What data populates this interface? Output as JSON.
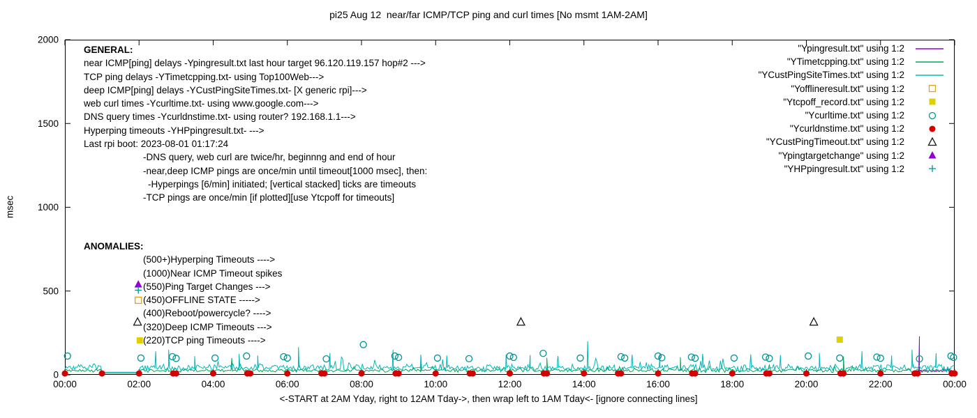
{
  "chart_data": {
    "type": "line",
    "title": "pi25 Aug 12  near/far ICMP/TCP ping and curl times [No msmt 1AM-2AM]",
    "xlabel": "<-START at 2AM Yday, right to 12AM Tday->, then wrap left to 1AM Tday<- [ignore connecting lines]",
    "ylabel": "msec",
    "xlim": [
      0,
      24
    ],
    "ylim": [
      0,
      2000
    ],
    "grid": false,
    "legend_position": "top-right-inside",
    "xticks": [
      {
        "v": 0,
        "label": "00:00"
      },
      {
        "v": 2,
        "label": "02:00"
      },
      {
        "v": 4,
        "label": "04:00"
      },
      {
        "v": 6,
        "label": "06:00"
      },
      {
        "v": 8,
        "label": "08:00"
      },
      {
        "v": 10,
        "label": "10:00"
      },
      {
        "v": 12,
        "label": "12:00"
      },
      {
        "v": 14,
        "label": "14:00"
      },
      {
        "v": 16,
        "label": "16:00"
      },
      {
        "v": 18,
        "label": "18:00"
      },
      {
        "v": 20,
        "label": "20:00"
      },
      {
        "v": 22,
        "label": "22:00"
      },
      {
        "v": 24,
        "label": "00:00"
      }
    ],
    "yticks": [
      {
        "v": 0,
        "label": "0"
      },
      {
        "v": 500,
        "label": "500"
      },
      {
        "v": 1000,
        "label": "1000"
      },
      {
        "v": 1500,
        "label": "1500"
      },
      {
        "v": 2000,
        "label": "2000"
      }
    ],
    "legend": [
      {
        "label": "\"Ypingresult.txt\" using 1:2",
        "sample": "line",
        "color": "#9400d3"
      },
      {
        "label": "\"YTimetcpping.txt\" using 1:2",
        "sample": "line",
        "color": "#00a550"
      },
      {
        "label": "\"YCustPingSiteTimes.txt\" using 1:2",
        "sample": "line",
        "color": "#00b8b8"
      },
      {
        "label": "\"Yofflineresult.txt\" using 1:2",
        "sample": "open-square",
        "color": "#e0a020"
      },
      {
        "label": "\"Ytcpoff_record.txt\" using 1:2",
        "sample": "filled-square",
        "color": "#e0d000"
      },
      {
        "label": "\"Ycurltime.txt\" using 1:2",
        "sample": "open-circle",
        "color": "#009494"
      },
      {
        "label": "\"Ycurldnstime.txt\" using 1:2",
        "sample": "filled-circle",
        "color": "#d40000"
      },
      {
        "label": "\"YCustPingTimeout.txt\" using 1:2",
        "sample": "open-triangle",
        "color": "#111111"
      },
      {
        "label": "\"Ypingtargetchange\" using 1:2",
        "sample": "filled-triangle",
        "color": "#9400d3"
      },
      {
        "label": "\"YHPpingresult.txt\" using 1:2",
        "sample": "plus",
        "color": "#009494"
      }
    ],
    "series": [
      {
        "name": "Ypingresult.txt",
        "style": "line",
        "color": "#9400d3",
        "synthetic_noise": {
          "start": 23.0,
          "end": 24.0,
          "step": 0.0167,
          "mean": 24,
          "amplitude": 9,
          "seed": 5
        },
        "spikes": [
          [
            23.05,
            230
          ]
        ]
      },
      {
        "name": "YTimetcpping.txt",
        "style": "line",
        "color": "#00a550",
        "synthetic_noise": {
          "start": 0,
          "end": 24,
          "step": 0.04,
          "mean": 26,
          "amplitude": 13,
          "seed": 13,
          "gap": [
            1.02,
            1.98
          ],
          "gap_level": 10
        },
        "spikes": [
          [
            4.5,
            100
          ],
          [
            9.6,
            108
          ],
          [
            13.0,
            102
          ],
          [
            16.6,
            105
          ],
          [
            21.0,
            110
          ]
        ]
      },
      {
        "name": "YCustPingSiteTimes.txt",
        "style": "line",
        "color": "#00b8b8",
        "synthetic_noise": {
          "start": 0,
          "end": 24,
          "step": 0.0333,
          "mean": 42,
          "amplitude": 26,
          "seed": 7,
          "gap": [
            1.02,
            1.98
          ],
          "gap_level": 16
        },
        "spikes": [
          [
            2.45,
            140
          ],
          [
            2.8,
            150
          ],
          [
            3.5,
            112
          ],
          [
            4.7,
            125
          ],
          [
            5.2,
            115
          ],
          [
            6.3,
            165
          ],
          [
            7.15,
            130
          ],
          [
            8.85,
            150
          ],
          [
            9.6,
            120
          ],
          [
            10.3,
            115
          ],
          [
            11.9,
            120
          ],
          [
            12.55,
            118
          ],
          [
            13.3,
            112
          ],
          [
            14.1,
            200
          ],
          [
            15.3,
            120
          ],
          [
            16.05,
            130
          ],
          [
            17.2,
            125
          ],
          [
            18.5,
            122
          ],
          [
            19.3,
            118
          ],
          [
            20.35,
            130
          ],
          [
            21.5,
            140
          ],
          [
            22.3,
            115
          ],
          [
            22.85,
            150
          ],
          [
            23.5,
            128
          ]
        ]
      },
      {
        "name": "Yofflineresult.txt",
        "style": "open-square",
        "color": "#e0a020",
        "points": [
          [
            1.98,
            445
          ]
        ]
      },
      {
        "name": "Ytcpoff_record.txt",
        "style": "filled-square",
        "color": "#e0d000",
        "points": [
          [
            2.02,
            205
          ],
          [
            20.9,
            210
          ]
        ]
      },
      {
        "name": "Ycurltime.txt",
        "style": "open-circle",
        "color": "#009494",
        "points": [
          [
            0.07,
            112
          ],
          [
            2.05,
            100
          ],
          [
            2.9,
            108
          ],
          [
            3.0,
            98
          ],
          [
            4.05,
            100
          ],
          [
            4.9,
            112
          ],
          [
            5.9,
            108
          ],
          [
            6.0,
            100
          ],
          [
            7.05,
            95
          ],
          [
            8.05,
            180
          ],
          [
            8.9,
            112
          ],
          [
            9.0,
            104
          ],
          [
            10.05,
            100
          ],
          [
            10.9,
            96
          ],
          [
            12.0,
            112
          ],
          [
            12.1,
            104
          ],
          [
            12.9,
            128
          ],
          [
            13.9,
            100
          ],
          [
            15.0,
            108
          ],
          [
            15.1,
            100
          ],
          [
            16.0,
            112
          ],
          [
            16.1,
            102
          ],
          [
            16.9,
            106
          ],
          [
            17.0,
            99
          ],
          [
            18.05,
            100
          ],
          [
            18.9,
            106
          ],
          [
            19.0,
            98
          ],
          [
            20.05,
            112
          ],
          [
            20.9,
            100
          ],
          [
            21.9,
            106
          ],
          [
            22.0,
            99
          ],
          [
            23.05,
            95
          ],
          [
            23.9,
            112
          ],
          [
            23.97,
            104
          ]
        ]
      },
      {
        "name": "Ycurldnstime.txt",
        "style": "filled-circle",
        "color": "#d40000",
        "points": [
          [
            0,
            8
          ],
          [
            1,
            8
          ],
          [
            2,
            8
          ],
          [
            2.92,
            8
          ],
          [
            3,
            8
          ],
          [
            4,
            8
          ],
          [
            4.92,
            8
          ],
          [
            5,
            8
          ],
          [
            6,
            8
          ],
          [
            6.92,
            8
          ],
          [
            7,
            8
          ],
          [
            8,
            8
          ],
          [
            8.92,
            8
          ],
          [
            9,
            8
          ],
          [
            10,
            8
          ],
          [
            10.92,
            8
          ],
          [
            11,
            8
          ],
          [
            12,
            8
          ],
          [
            12.92,
            8
          ],
          [
            13,
            8
          ],
          [
            14,
            8
          ],
          [
            14.92,
            8
          ],
          [
            15,
            8
          ],
          [
            16,
            8
          ],
          [
            16.92,
            8
          ],
          [
            17,
            8
          ],
          [
            18,
            8
          ],
          [
            18.92,
            8
          ],
          [
            19,
            8
          ],
          [
            20,
            8
          ],
          [
            20.92,
            8
          ],
          [
            21,
            8
          ],
          [
            22,
            8
          ],
          [
            22.92,
            8
          ],
          [
            23,
            8
          ],
          [
            23.92,
            8
          ],
          [
            24,
            8
          ]
        ]
      },
      {
        "name": "YCustPingTimeout.txt",
        "style": "open-triangle",
        "color": "#111111",
        "points": [
          [
            1.96,
            315
          ],
          [
            12.3,
            315
          ],
          [
            20.2,
            315
          ]
        ]
      },
      {
        "name": "Ypingtargetchange",
        "style": "filled-triangle",
        "color": "#9400d3",
        "points": [
          [
            1.98,
            540
          ]
        ]
      },
      {
        "name": "YHPpingresult.txt",
        "style": "plus",
        "color": "#009494",
        "points": [
          [
            1.98,
            505
          ]
        ]
      }
    ]
  },
  "annotations": {
    "general": {
      "heading": "GENERAL:",
      "lines": [
        {
          "text": "near ICMP[ping] delays -Ypingresult.txt last hour target 96.120.119.157 hop#2 --->",
          "indent": 0
        },
        {
          "text": "TCP ping delays -YTimetcpping.txt- using Top100Web--->",
          "indent": 0
        },
        {
          "text": "deep ICMP[ping] delays -YCustPingSiteTimes.txt- [X generic rpi]--->",
          "indent": 0
        },
        {
          "text": "web curl times -Ycurltime.txt- using www.google.com--->",
          "indent": 0
        },
        {
          "text": "DNS query times -Ycurldnstime.txt- using router? 192.168.1.1--->",
          "indent": 0
        },
        {
          "text": "Hyperping timeouts -YHPpingresult.txt- --->",
          "indent": 0
        },
        {
          "text": "Last rpi boot: 2023-08-01 01:17:24",
          "indent": 0
        },
        {
          "text": "-DNS query, web curl are twice/hr, beginnng and end of hour",
          "indent": 85
        },
        {
          "text": "-near,deep ICMP pings are once/min until timeout[1000 msec], then:",
          "indent": 85
        },
        {
          "text": "-Hyperpings [6/min] initiated; [vertical stacked] ticks are timeouts",
          "indent": 92
        },
        {
          "text": "-TCP pings are once/min [if plotted][use Ytcpoff for timeouts]",
          "indent": 85
        }
      ]
    },
    "anomalies": {
      "heading": "ANOMALIES:",
      "lines": [
        {
          "text": "(500+)Hyperping Timeouts ---->",
          "indent": 85
        },
        {
          "text": "(1000)Near ICMP Timeout spikes",
          "indent": 85
        },
        {
          "text": "(550)Ping Target Changes --->",
          "indent": 85
        },
        {
          "text": "(450)OFFLINE STATE ----->",
          "indent": 85
        },
        {
          "text": "(400)Reboot/powercycle? ---->",
          "indent": 85
        },
        {
          "text": "(320)Deep ICMP Timeouts --->",
          "indent": 85
        },
        {
          "text": "(220)TCP ping Timeouts ---->",
          "indent": 85
        }
      ]
    }
  }
}
